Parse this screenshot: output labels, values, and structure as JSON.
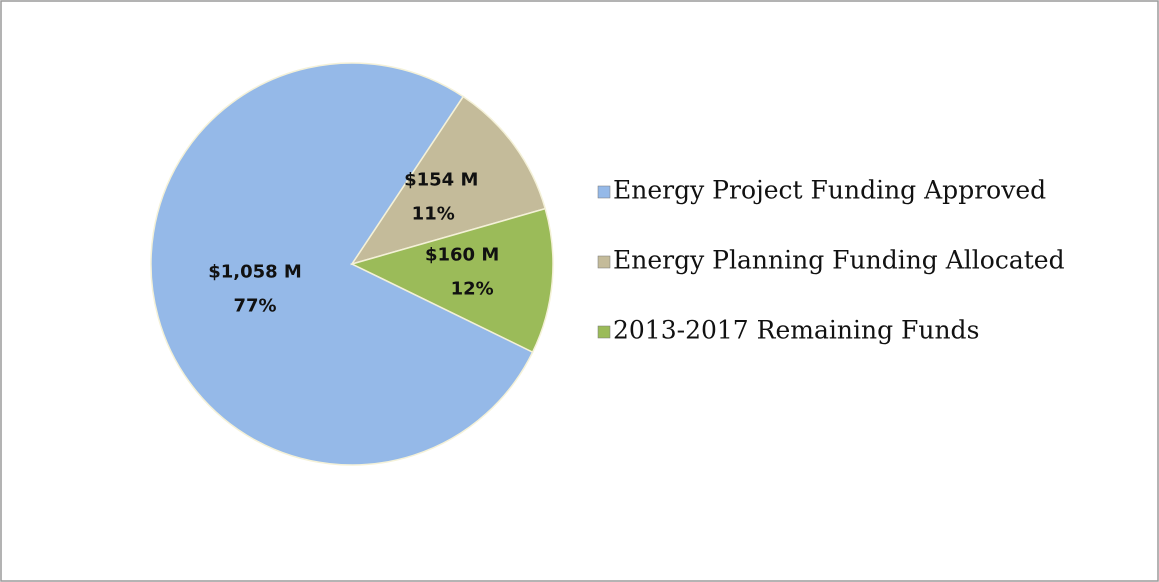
{
  "chart_data": {
    "type": "pie",
    "categories": [
      "Energy Project Funding Approved",
      "Energy Planning Funding Allocated",
      "2013-2017 Remaining Funds"
    ],
    "values": [
      1058,
      154,
      160
    ],
    "value_labels": [
      "$1,058 M",
      "$154 M",
      "$160 M"
    ],
    "percent_labels": [
      "77%",
      "11%",
      "12%"
    ],
    "colors": [
      "#95b9e8",
      "#c4bb9a",
      "#9bbb59"
    ],
    "legend": "right"
  }
}
